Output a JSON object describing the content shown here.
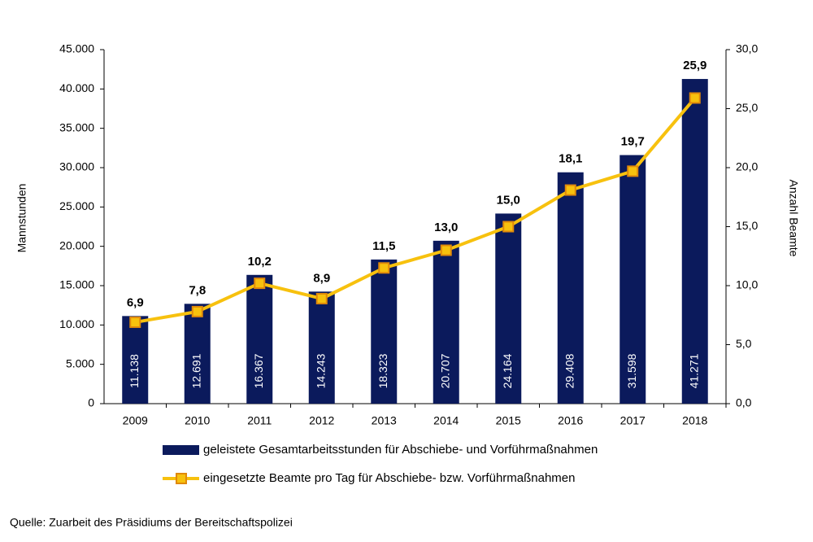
{
  "chart_data": {
    "type": "bar",
    "categories": [
      "2009",
      "2010",
      "2011",
      "2012",
      "2013",
      "2014",
      "2015",
      "2016",
      "2017",
      "2018"
    ],
    "series": [
      {
        "name": "geleistete Gesamtarbeitsstunden für Abschiebe- und Vorführmaßnahmen",
        "type": "bar",
        "color": "#0b1a5c",
        "values": [
          11138,
          12691,
          16367,
          14243,
          18323,
          20707,
          24164,
          29408,
          31598,
          41271
        ],
        "value_labels": [
          "11.138",
          "12.691",
          "16.367",
          "14.243",
          "18.323",
          "20.707",
          "24.164",
          "29.408",
          "31.598",
          "41.271"
        ]
      },
      {
        "name": "eingesetzte Beamte pro Tag für Abschiebe- bzw. Vorführmaßnahmen",
        "type": "line",
        "axis": "y2",
        "color": "#f7c10e",
        "marker_edge": "#e0890a",
        "values": [
          6.9,
          7.8,
          10.2,
          8.9,
          11.5,
          13.0,
          15.0,
          18.1,
          19.7,
          25.9
        ],
        "value_labels": [
          "6,9",
          "7,8",
          "10,2",
          "8,9",
          "11,5",
          "13,0",
          "15,0",
          "18,1",
          "19,7",
          "25,9"
        ]
      }
    ],
    "ylabel": "Mannstunden",
    "y2label": "Anzahl Beamte",
    "ylim": [
      0,
      45000
    ],
    "yticks": [
      0,
      {
        "value": 5000,
        "label": "5.000"
      },
      {
        "value": 10000,
        "label": "10.000"
      },
      {
        "value": 15000,
        "label": "15.000"
      },
      {
        "value": 20000,
        "label": "20.000"
      },
      {
        "value": 25000,
        "label": "25.000"
      },
      {
        "value": 30000,
        "label": "30.000"
      },
      {
        "value": 35000,
        "label": "35.000"
      },
      {
        "value": 40000,
        "label": "40.000"
      },
      {
        "value": 45000,
        "label": "45.000"
      }
    ],
    "y2lim": [
      0,
      30
    ],
    "y2ticks": [
      {
        "value": 0,
        "label": "0,0"
      },
      {
        "value": 5,
        "label": "5,0"
      },
      {
        "value": 10,
        "label": "10,0"
      },
      {
        "value": 15,
        "label": "15,0"
      },
      {
        "value": 20,
        "label": "20,0"
      },
      {
        "value": 25,
        "label": "25,0"
      },
      {
        "value": 30,
        "label": "30,0"
      }
    ],
    "source": "Quelle: Zuarbeit des Präsidiums der Bereitschaftspolizei"
  }
}
